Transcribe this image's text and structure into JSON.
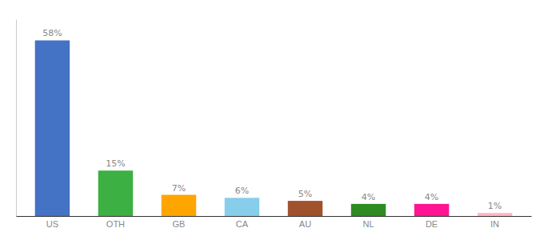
{
  "chart_data": {
    "type": "bar",
    "categories": [
      "US",
      "OTH",
      "GB",
      "CA",
      "AU",
      "NL",
      "DE",
      "IN"
    ],
    "values": [
      58,
      15,
      7,
      6,
      5,
      4,
      4,
      1
    ],
    "value_labels": [
      "58%",
      "15%",
      "7%",
      "6%",
      "5%",
      "4%",
      "4%",
      "1%"
    ],
    "colors": [
      "#4472C4",
      "#3CB043",
      "#FFA500",
      "#87CEEB",
      "#A0522D",
      "#2E8B22",
      "#FF1493",
      "#FFB6C1"
    ],
    "ylim": [
      0,
      65
    ],
    "grid": false,
    "data_labels": true,
    "tick_labels": "x"
  }
}
